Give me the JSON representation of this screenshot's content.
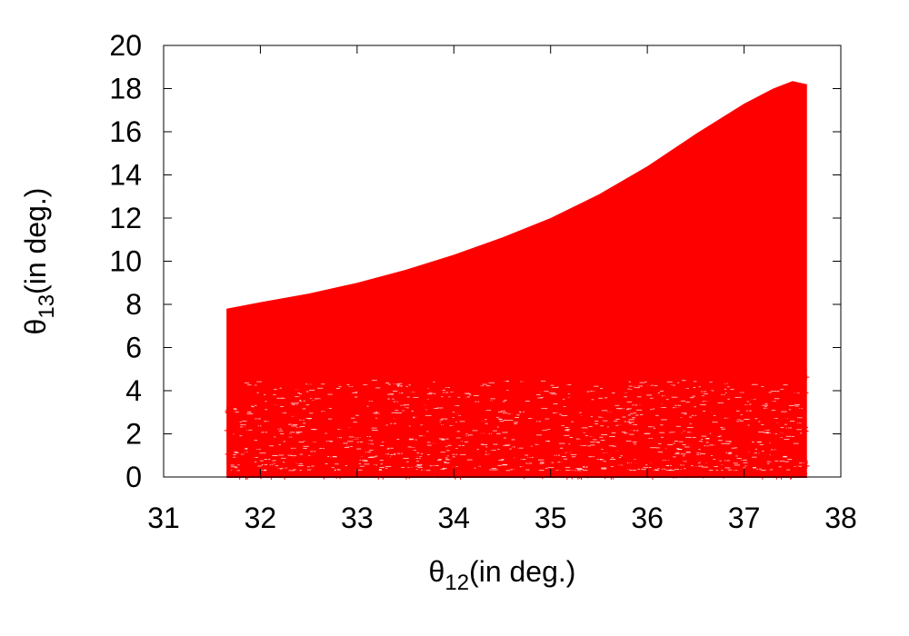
{
  "chart_data": {
    "type": "scatter",
    "title": "",
    "xlabel": {
      "symbol": "θ",
      "subscript": "12",
      "suffix": "(in deg.)"
    },
    "ylabel": {
      "symbol": "θ",
      "subscript": "13",
      "suffix": "(in deg.)"
    },
    "xlim": [
      31,
      38
    ],
    "ylim": [
      0,
      20
    ],
    "xticks": [
      "31",
      "32",
      "33",
      "34",
      "35",
      "36",
      "37",
      "38"
    ],
    "yticks": [
      "0",
      "2",
      "4",
      "6",
      "8",
      "10",
      "12",
      "14",
      "16",
      "18",
      "20"
    ],
    "grid": false,
    "legend": "none",
    "series": [
      {
        "color": "#ff0000",
        "marker": "plus",
        "region_x_range": [
          31.65,
          37.65
        ],
        "upper_envelope": {
          "x": [
            31.65,
            32.0,
            32.5,
            33.0,
            33.5,
            34.0,
            34.5,
            35.0,
            35.5,
            36.0,
            36.5,
            37.0,
            37.3,
            37.5,
            37.65
          ],
          "y": [
            7.8,
            8.1,
            8.5,
            9.0,
            9.6,
            10.3,
            11.1,
            12.0,
            13.1,
            14.4,
            15.9,
            17.3,
            18.0,
            18.35,
            18.2
          ]
        },
        "lower_bound": 0
      }
    ]
  }
}
